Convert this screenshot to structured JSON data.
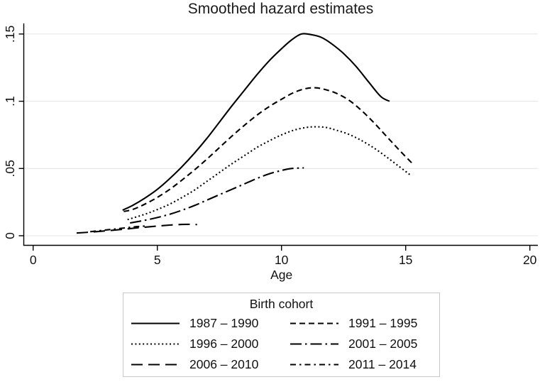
{
  "chart_data": {
    "type": "line",
    "title": "Smoothed hazard estimates",
    "xlabel": "Age",
    "ylabel": "",
    "xlim": [
      0,
      20
    ],
    "ylim": [
      0,
      0.15
    ],
    "x_ticks": [
      0,
      5,
      10,
      15,
      20
    ],
    "y_ticks": [
      {
        "value": 0,
        "label": "0"
      },
      {
        "value": 0.05,
        "label": ".05"
      },
      {
        "value": 0.1,
        "label": ".1"
      },
      {
        "value": 0.15,
        "label": ".15"
      }
    ],
    "grid": "horizontal",
    "legend": {
      "title": "Birth cohort",
      "position": "bottom",
      "columns": 2
    },
    "series": [
      {
        "name": "1987 – 1990",
        "dash": "solid",
        "points": [
          [
            3.6,
            0.019
          ],
          [
            4,
            0.0225
          ],
          [
            4.5,
            0.028
          ],
          [
            5,
            0.0345
          ],
          [
            5.5,
            0.0425
          ],
          [
            6,
            0.0515
          ],
          [
            6.5,
            0.0615
          ],
          [
            7,
            0.0725
          ],
          [
            7.5,
            0.0845
          ],
          [
            8,
            0.0965
          ],
          [
            8.5,
            0.108
          ],
          [
            9,
            0.1195
          ],
          [
            9.5,
            0.13
          ],
          [
            10,
            0.139
          ],
          [
            10.4,
            0.1455
          ],
          [
            10.8,
            0.15
          ],
          [
            11.2,
            0.1495
          ],
          [
            11.6,
            0.1475
          ],
          [
            12,
            0.143
          ],
          [
            12.5,
            0.1355
          ],
          [
            13,
            0.126
          ],
          [
            13.5,
            0.1145
          ],
          [
            14,
            0.1035
          ],
          [
            14.35,
            0.1
          ]
        ]
      },
      {
        "name": "1991 – 1995",
        "dash": "dash",
        "points": [
          [
            3.65,
            0.018
          ],
          [
            4,
            0.0195
          ],
          [
            4.5,
            0.0235
          ],
          [
            5,
            0.0285
          ],
          [
            5.5,
            0.0345
          ],
          [
            6,
            0.0415
          ],
          [
            6.5,
            0.049
          ],
          [
            7,
            0.057
          ],
          [
            7.5,
            0.0655
          ],
          [
            8,
            0.074
          ],
          [
            8.5,
            0.082
          ],
          [
            9,
            0.0895
          ],
          [
            9.5,
            0.096
          ],
          [
            10,
            0.1015
          ],
          [
            10.5,
            0.1065
          ],
          [
            11,
            0.1095
          ],
          [
            11.4,
            0.11
          ],
          [
            11.8,
            0.1085
          ],
          [
            12.2,
            0.106
          ],
          [
            12.7,
            0.101
          ],
          [
            13.2,
            0.0935
          ],
          [
            13.7,
            0.0845
          ],
          [
            14.2,
            0.0745
          ],
          [
            14.7,
            0.0645
          ],
          [
            15.25,
            0.054
          ]
        ]
      },
      {
        "name": "1996 – 2000",
        "dash": "dot",
        "points": [
          [
            3.8,
            0.012
          ],
          [
            4.5,
            0.016
          ],
          [
            5,
            0.0195
          ],
          [
            5.5,
            0.0235
          ],
          [
            6,
            0.0285
          ],
          [
            6.5,
            0.034
          ],
          [
            7,
            0.0405
          ],
          [
            7.5,
            0.047
          ],
          [
            8,
            0.0535
          ],
          [
            8.5,
            0.0595
          ],
          [
            9,
            0.0655
          ],
          [
            9.5,
            0.0705
          ],
          [
            10,
            0.075
          ],
          [
            10.5,
            0.0785
          ],
          [
            11,
            0.0805
          ],
          [
            11.4,
            0.081
          ],
          [
            11.8,
            0.0805
          ],
          [
            12.2,
            0.0785
          ],
          [
            12.7,
            0.0755
          ],
          [
            13.2,
            0.071
          ],
          [
            13.7,
            0.0655
          ],
          [
            14.2,
            0.059
          ],
          [
            14.7,
            0.052
          ],
          [
            15.2,
            0.045
          ]
        ]
      },
      {
        "name": "2001 – 2005",
        "dash": "longdash-dot",
        "points": [
          [
            3.9,
            0.0095
          ],
          [
            4.5,
            0.0115
          ],
          [
            5,
            0.0135
          ],
          [
            5.5,
            0.016
          ],
          [
            6,
            0.019
          ],
          [
            6.5,
            0.0225
          ],
          [
            7,
            0.0265
          ],
          [
            7.5,
            0.0305
          ],
          [
            8,
            0.0345
          ],
          [
            8.5,
            0.0385
          ],
          [
            9,
            0.0425
          ],
          [
            9.5,
            0.046
          ],
          [
            10,
            0.0485
          ],
          [
            10.4,
            0.05
          ],
          [
            10.9,
            0.0505
          ]
        ]
      },
      {
        "name": "2006 – 2010",
        "dash": "longdash",
        "points": [
          [
            1.75,
            0.002
          ],
          [
            2.3,
            0.0027
          ],
          [
            2.9,
            0.0036
          ],
          [
            3.5,
            0.0046
          ],
          [
            4,
            0.0055
          ],
          [
            4.5,
            0.0064
          ],
          [
            5,
            0.0072
          ],
          [
            5.5,
            0.0079
          ],
          [
            6,
            0.0084
          ],
          [
            6.3,
            0.0085
          ],
          [
            6.6,
            0.0083
          ]
        ]
      },
      {
        "name": "2011 – 2014",
        "dash": "shortdash-dot",
        "points": [
          [
            2.3,
            0.003
          ],
          [
            2.8,
            0.004
          ],
          [
            3.3,
            0.005
          ],
          [
            3.8,
            0.006
          ],
          [
            4.2,
            0.0068
          ],
          [
            4.6,
            0.0073
          ]
        ]
      }
    ]
  },
  "colors": {
    "line": "#000000",
    "grid": "#e4e4e4",
    "axis": "#000000",
    "text": "#111111",
    "legend_border": "#c9c9c9",
    "background": "#ffffff"
  }
}
